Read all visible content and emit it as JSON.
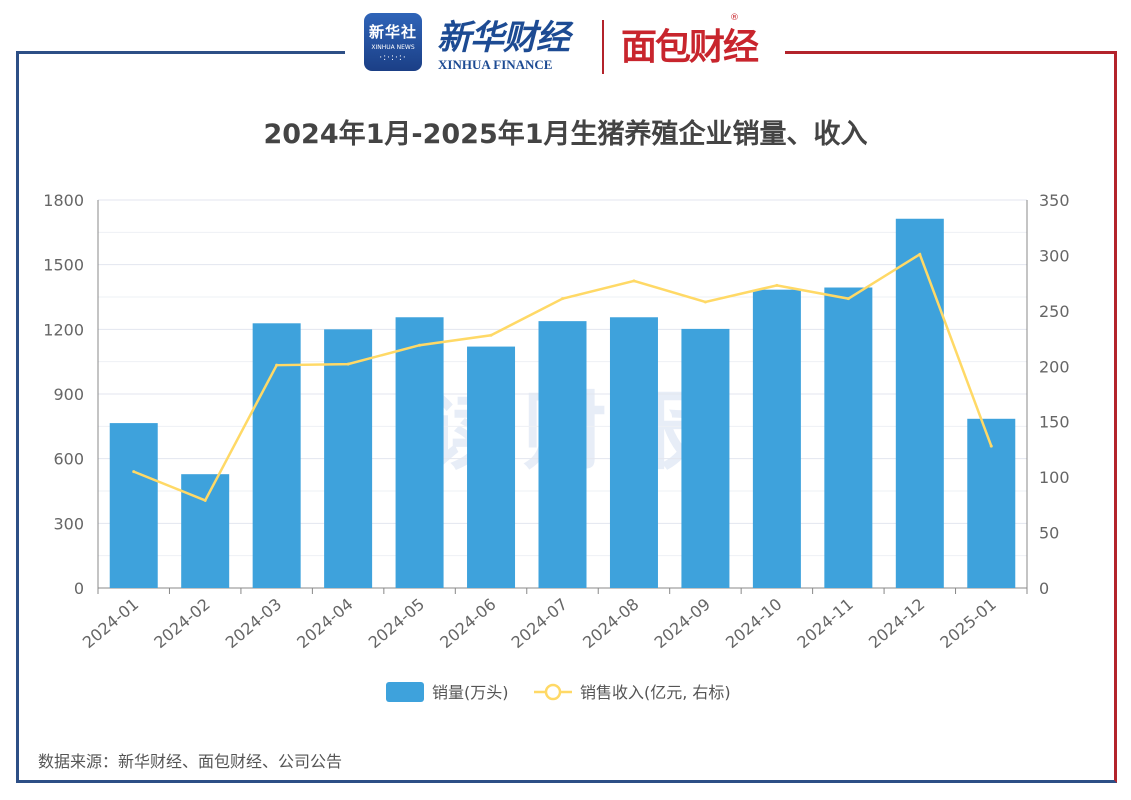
{
  "header": {
    "xinhua_badge_cn": "新华社",
    "xinhua_badge_en": "XINHUA NEWS",
    "xinhua_finance_cn": "新华财经",
    "xinhua_finance_en": "XINHUA FINANCE",
    "mianbao_brand": "面包财经",
    "registered_mark": "®"
  },
  "watermark": "读财报",
  "source_note": "数据来源：新华财经、面包财经、公司公告",
  "colors": {
    "bar": "#3ea2dc",
    "line": "#ffd966",
    "frame_left": "#2d4f86",
    "frame_right": "#b3232b"
  },
  "chart_data": {
    "type": "bar",
    "title": "2024年1月-2025年1月生猪养殖企业销量、收入",
    "categories": [
      "2024-01",
      "2024-02",
      "2024-03",
      "2024-04",
      "2024-05",
      "2024-06",
      "2024-07",
      "2024-08",
      "2024-09",
      "2024-10",
      "2024-11",
      "2024-12",
      "2025-01"
    ],
    "y_left": {
      "min": 0,
      "max": 1800,
      "ticks": [
        0,
        300,
        600,
        900,
        1200,
        1500,
        1800
      ]
    },
    "y_right": {
      "min": 0,
      "max": 350,
      "ticks": [
        0,
        50,
        100,
        150,
        200,
        250,
        300,
        350
      ]
    },
    "grid": true,
    "legend_position": "bottom",
    "series": [
      {
        "name": "销量(万头)",
        "type": "bar",
        "axis": "left",
        "values": [
          765,
          528,
          1228,
          1200,
          1256,
          1120,
          1238,
          1256,
          1202,
          1384,
          1394,
          1713,
          785
        ]
      },
      {
        "name": "销售收入(亿元, 右标)",
        "type": "line",
        "axis": "right",
        "values": [
          105,
          79,
          201,
          202,
          219,
          228,
          261,
          277,
          258,
          273,
          261,
          301,
          128
        ]
      }
    ]
  }
}
